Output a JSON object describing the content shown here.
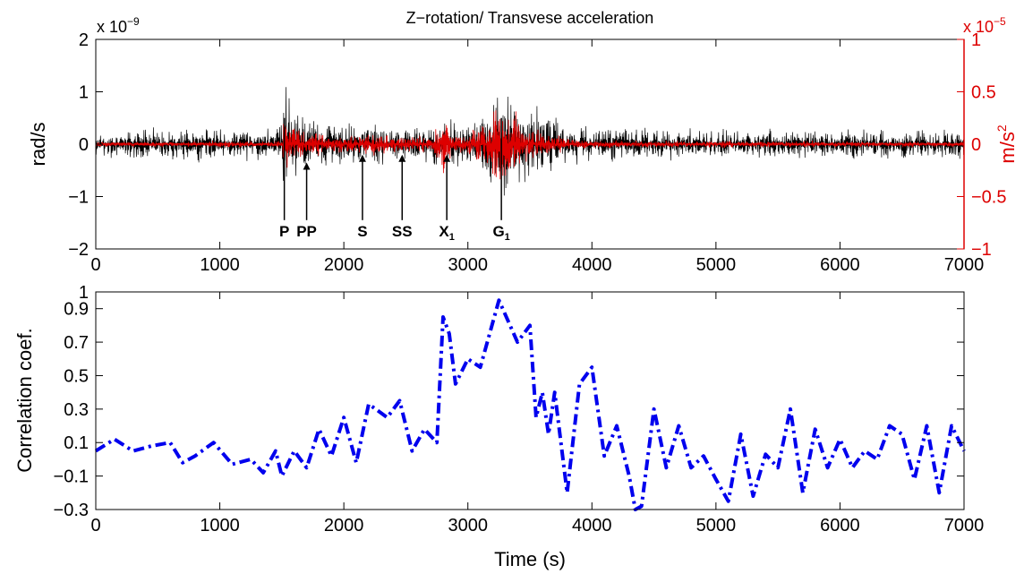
{
  "chart_data": [
    {
      "type": "line",
      "title": "Z−rotation/ Transvese acceleration",
      "xlim": [
        0,
        7000
      ],
      "x_ticks": [
        "0",
        "1000",
        "2000",
        "3000",
        "4000",
        "5000",
        "6000",
        "7000"
      ],
      "left_axis": {
        "label": "rad/s",
        "multiplier": "x 10",
        "exponent": "−9",
        "ylim": [
          -2,
          2
        ],
        "ticks": [
          "2",
          "1",
          "0",
          "−1",
          "−2"
        ],
        "color": "#000000"
      },
      "right_axis": {
        "label": "m/s",
        "label_sup": "2",
        "multiplier": "x 10",
        "exponent": "−5",
        "ylim": [
          -1,
          1
        ],
        "ticks": [
          "1",
          "0.5",
          "0",
          "−0.5",
          "−1"
        ],
        "color": "#dd0000"
      },
      "series": [
        {
          "axis": "left",
          "color": "#000000",
          "envelope": {
            "x": [
              0,
              1450,
              1500,
              1520,
              1560,
              1650,
              1800,
              2000,
              2300,
              2600,
              2800,
              3000,
              3150,
              3250,
              3300,
              3400,
              3600,
              3800,
              4000,
              5000,
              6000,
              7000
            ],
            "amp": [
              0.35,
              0.38,
              0.7,
              1.5,
              1.0,
              0.75,
              0.6,
              0.5,
              0.45,
              0.45,
              0.55,
              0.6,
              0.9,
              1.4,
              1.6,
              1.1,
              0.8,
              0.5,
              0.4,
              0.35,
              0.35,
              0.35
            ]
          }
        },
        {
          "axis": "right",
          "color": "#dd0000",
          "envelope": {
            "x": [
              0,
              1500,
              1520,
              1560,
              1700,
              2000,
              2200,
              2500,
              2700,
              2780,
              2830,
              2880,
              3000,
              3150,
              3250,
              3300,
              3400,
              3500,
              3700,
              4000,
              5000,
              7000
            ],
            "amp": [
              0.03,
              0.04,
              0.35,
              0.25,
              0.15,
              0.1,
              0.14,
              0.1,
              0.1,
              0.35,
              0.4,
              0.12,
              0.15,
              0.35,
              0.55,
              0.5,
              0.35,
              0.22,
              0.1,
              0.05,
              0.04,
              0.03
            ]
          }
        }
      ],
      "annotations": [
        {
          "label": "P",
          "x": 1520
        },
        {
          "label": "PP",
          "x": 1700
        },
        {
          "label": "S",
          "x": 2150
        },
        {
          "label": "SS",
          "x": 2470
        },
        {
          "label": "X",
          "sub": "1",
          "x": 2830
        },
        {
          "label": "G",
          "sub": "1",
          "x": 3270
        }
      ]
    },
    {
      "type": "line",
      "xlabel": "Time (s)",
      "ylabel": "Correlation coef.",
      "xlim": [
        0,
        7000
      ],
      "ylim": [
        -0.3,
        1
      ],
      "x_ticks": [
        "0",
        "1000",
        "2000",
        "3000",
        "4000",
        "5000",
        "6000",
        "7000"
      ],
      "y_ticks": [
        "1",
        "0.9",
        "0.7",
        "0.5",
        "0.3",
        "0.1",
        "−0.1",
        "−0.3"
      ],
      "series": [
        {
          "color": "#0000ee",
          "style": "dash-dot",
          "x": [
            0,
            150,
            300,
            450,
            600,
            700,
            800,
            950,
            1100,
            1250,
            1350,
            1450,
            1500,
            1600,
            1700,
            1800,
            1900,
            2000,
            2100,
            2200,
            2350,
            2450,
            2550,
            2650,
            2750,
            2800,
            2850,
            2900,
            3000,
            3100,
            3250,
            3400,
            3500,
            3550,
            3600,
            3650,
            3700,
            3800,
            3900,
            4000,
            4100,
            4200,
            4300,
            4350,
            4400,
            4500,
            4600,
            4700,
            4800,
            4900,
            5000,
            5100,
            5200,
            5300,
            5400,
            5500,
            5600,
            5700,
            5800,
            5900,
            6000,
            6100,
            6200,
            6300,
            6400,
            6500,
            6600,
            6700,
            6800,
            6900,
            7000
          ],
          "y": [
            0.05,
            0.12,
            0.05,
            0.08,
            0.1,
            -0.02,
            0.02,
            0.1,
            -0.03,
            0.0,
            -0.08,
            0.05,
            -0.1,
            0.05,
            -0.05,
            0.18,
            0.02,
            0.25,
            -0.02,
            0.33,
            0.25,
            0.35,
            0.05,
            0.18,
            0.1,
            0.85,
            0.75,
            0.45,
            0.6,
            0.55,
            0.95,
            0.7,
            0.8,
            0.25,
            0.4,
            0.15,
            0.4,
            -0.2,
            0.45,
            0.55,
            0.02,
            0.2,
            -0.1,
            -0.3,
            -0.28,
            0.3,
            -0.05,
            0.2,
            -0.05,
            0.02,
            -0.12,
            -0.25,
            0.15,
            -0.22,
            0.03,
            -0.05,
            0.3,
            -0.2,
            0.18,
            -0.05,
            0.12,
            -0.05,
            0.05,
            0.0,
            0.2,
            0.15,
            -0.12,
            0.2,
            -0.2,
            0.2,
            0.05
          ]
        }
      ]
    }
  ]
}
